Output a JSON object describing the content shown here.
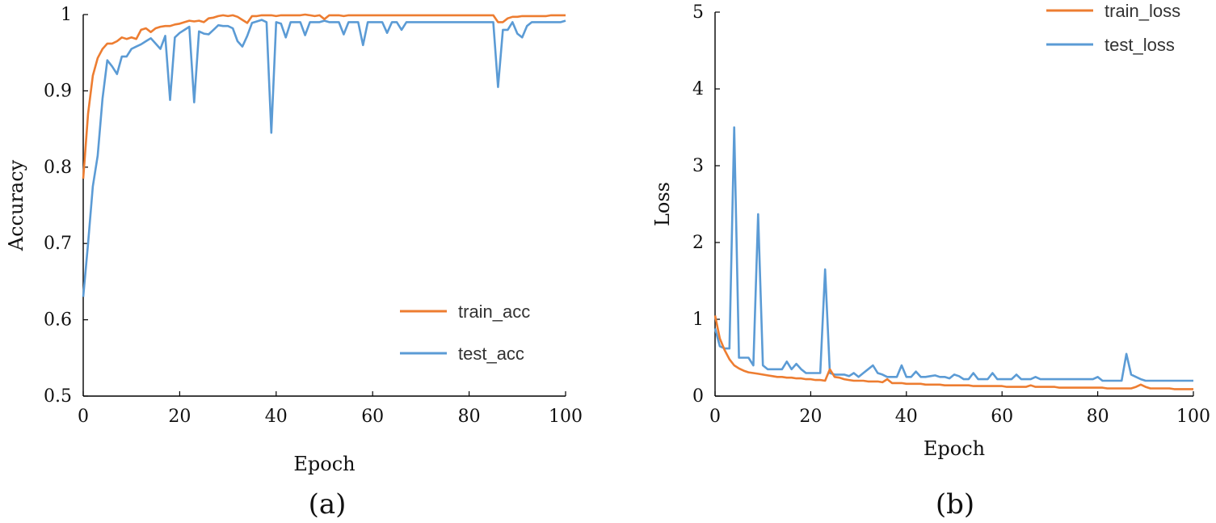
{
  "chart_data": [
    {
      "id": "a",
      "type": "line",
      "caption": "(a)",
      "xlabel": "Epoch",
      "ylabel": "Accuracy",
      "xlim": [
        0,
        100
      ],
      "ylim": [
        0.5,
        1.0
      ],
      "xticks": [
        "0",
        "20",
        "40",
        "60",
        "80",
        "100"
      ],
      "yticks": [
        "0.5",
        "0.6",
        "0.7",
        "0.8",
        "0.9",
        "1"
      ],
      "legend_position": "bottom-right",
      "series": [
        {
          "name": "train_acc",
          "color": "#ED7D31",
          "values": [
            0.785,
            0.87,
            0.92,
            0.943,
            0.955,
            0.962,
            0.962,
            0.965,
            0.97,
            0.968,
            0.97,
            0.968,
            0.98,
            0.982,
            0.977,
            0.982,
            0.984,
            0.985,
            0.985,
            0.987,
            0.988,
            0.99,
            0.992,
            0.991,
            0.992,
            0.99,
            0.995,
            0.996,
            0.998,
            0.999,
            0.998,
            0.999,
            0.997,
            0.993,
            0.989,
            0.998,
            0.998,
            0.999,
            0.999,
            0.999,
            0.998,
            0.999,
            0.999,
            0.999,
            0.999,
            0.999,
            1.0,
            0.999,
            0.998,
            0.999,
            0.994,
            0.999,
            0.999,
            0.999,
            0.998,
            0.999,
            0.999,
            0.999,
            0.999,
            0.999,
            0.999,
            0.999,
            0.999,
            0.999,
            0.999,
            0.999,
            0.999,
            0.999,
            0.999,
            0.999,
            0.999,
            0.999,
            0.999,
            0.999,
            0.999,
            0.999,
            0.999,
            0.999,
            0.999,
            0.999,
            0.999,
            0.999,
            0.999,
            0.999,
            0.999,
            0.999,
            0.99,
            0.99,
            0.995,
            0.997,
            0.997,
            0.998,
            0.998,
            0.998,
            0.998,
            0.998,
            0.998,
            0.999,
            0.999,
            0.999,
            0.999
          ]
        },
        {
          "name": "test_acc",
          "color": "#5B9BD5",
          "values": [
            0.63,
            0.7,
            0.775,
            0.815,
            0.89,
            0.94,
            0.932,
            0.922,
            0.945,
            0.945,
            0.955,
            0.958,
            0.961,
            0.965,
            0.969,
            0.962,
            0.955,
            0.972,
            0.888,
            0.97,
            0.976,
            0.98,
            0.984,
            0.885,
            0.978,
            0.975,
            0.974,
            0.98,
            0.986,
            0.985,
            0.985,
            0.982,
            0.965,
            0.958,
            0.972,
            0.989,
            0.991,
            0.993,
            0.99,
            0.845,
            0.99,
            0.988,
            0.97,
            0.99,
            0.99,
            0.99,
            0.973,
            0.99,
            0.99,
            0.99,
            0.992,
            0.99,
            0.99,
            0.99,
            0.974,
            0.99,
            0.99,
            0.99,
            0.96,
            0.99,
            0.99,
            0.99,
            0.99,
            0.976,
            0.99,
            0.99,
            0.98,
            0.99,
            0.99,
            0.99,
            0.99,
            0.99,
            0.99,
            0.99,
            0.99,
            0.99,
            0.99,
            0.99,
            0.99,
            0.99,
            0.99,
            0.99,
            0.99,
            0.99,
            0.99,
            0.99,
            0.905,
            0.98,
            0.98,
            0.99,
            0.975,
            0.97,
            0.985,
            0.99,
            0.99,
            0.99,
            0.99,
            0.99,
            0.99,
            0.99,
            0.992
          ]
        }
      ]
    },
    {
      "id": "b",
      "type": "line",
      "caption": "(b)",
      "xlabel": "Epoch",
      "ylabel": "Loss",
      "xlim": [
        0,
        100
      ],
      "ylim": [
        0,
        5
      ],
      "xticks": [
        "0",
        "20",
        "40",
        "60",
        "80",
        "100"
      ],
      "yticks": [
        "0",
        "1",
        "2",
        "3",
        "4",
        "5"
      ],
      "legend_position": "top-right",
      "series": [
        {
          "name": "train_loss",
          "color": "#ED7D31",
          "values": [
            1.05,
            0.75,
            0.6,
            0.48,
            0.4,
            0.36,
            0.33,
            0.31,
            0.3,
            0.29,
            0.28,
            0.27,
            0.26,
            0.25,
            0.25,
            0.24,
            0.24,
            0.23,
            0.23,
            0.22,
            0.22,
            0.21,
            0.21,
            0.2,
            0.35,
            0.25,
            0.24,
            0.22,
            0.21,
            0.2,
            0.2,
            0.2,
            0.19,
            0.19,
            0.19,
            0.18,
            0.22,
            0.17,
            0.17,
            0.17,
            0.16,
            0.16,
            0.16,
            0.16,
            0.15,
            0.15,
            0.15,
            0.15,
            0.14,
            0.14,
            0.14,
            0.14,
            0.14,
            0.14,
            0.13,
            0.13,
            0.13,
            0.13,
            0.13,
            0.13,
            0.13,
            0.12,
            0.12,
            0.12,
            0.12,
            0.12,
            0.14,
            0.12,
            0.12,
            0.12,
            0.12,
            0.12,
            0.11,
            0.11,
            0.11,
            0.11,
            0.11,
            0.11,
            0.11,
            0.11,
            0.11,
            0.11,
            0.1,
            0.1,
            0.1,
            0.1,
            0.1,
            0.1,
            0.12,
            0.15,
            0.12,
            0.1,
            0.1,
            0.1,
            0.1,
            0.1,
            0.09,
            0.09,
            0.09,
            0.09,
            0.09
          ]
        },
        {
          "name": "test_loss",
          "color": "#5B9BD5",
          "values": [
            0.88,
            0.65,
            0.62,
            0.62,
            3.5,
            0.5,
            0.5,
            0.5,
            0.4,
            2.37,
            0.4,
            0.35,
            0.35,
            0.35,
            0.35,
            0.45,
            0.35,
            0.42,
            0.35,
            0.3,
            0.3,
            0.3,
            0.3,
            1.65,
            0.3,
            0.28,
            0.28,
            0.28,
            0.26,
            0.3,
            0.25,
            0.3,
            0.35,
            0.4,
            0.3,
            0.28,
            0.25,
            0.25,
            0.25,
            0.4,
            0.25,
            0.25,
            0.32,
            0.25,
            0.25,
            0.26,
            0.27,
            0.25,
            0.25,
            0.23,
            0.28,
            0.26,
            0.22,
            0.22,
            0.3,
            0.22,
            0.22,
            0.22,
            0.3,
            0.22,
            0.22,
            0.22,
            0.22,
            0.28,
            0.22,
            0.22,
            0.22,
            0.25,
            0.22,
            0.22,
            0.22,
            0.22,
            0.22,
            0.22,
            0.22,
            0.22,
            0.22,
            0.22,
            0.22,
            0.22,
            0.25,
            0.2,
            0.2,
            0.2,
            0.2,
            0.2,
            0.55,
            0.28,
            0.25,
            0.22,
            0.2,
            0.2,
            0.2,
            0.2,
            0.2,
            0.2,
            0.2,
            0.2,
            0.2,
            0.2,
            0.2
          ]
        }
      ]
    }
  ]
}
